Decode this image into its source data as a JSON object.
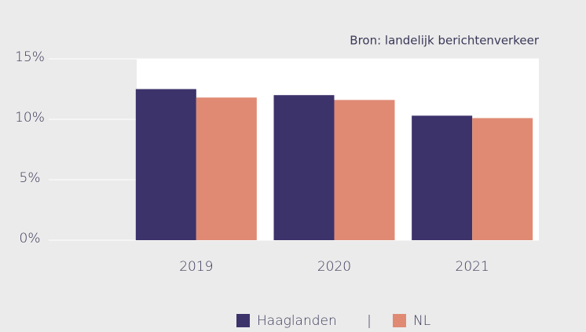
{
  "chart_data": {
    "type": "bar",
    "source": "Bron: landelijk berichtenverkeer",
    "categories": [
      "2019",
      "2020",
      "2021"
    ],
    "series": [
      {
        "name": "Haaglanden",
        "color": "#3d336b",
        "values": [
          12.5,
          12.0,
          10.3
        ]
      },
      {
        "name": "NL",
        "color": "#e08a74",
        "values": [
          11.8,
          11.6,
          10.1
        ]
      }
    ],
    "legend_separator": "|",
    "ylim": [
      0,
      15
    ],
    "yticks": [
      {
        "value": 0,
        "label": "0%"
      },
      {
        "value": 5,
        "label": "5%"
      },
      {
        "value": 10,
        "label": "10%"
      },
      {
        "value": 15,
        "label": "15%"
      }
    ],
    "grid": true
  }
}
